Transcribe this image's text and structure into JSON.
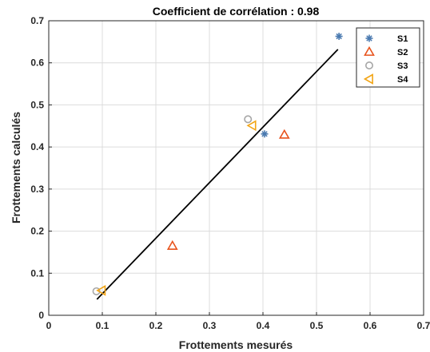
{
  "chart_data": {
    "type": "scatter",
    "title": "Coefficient de corrélation : 0.98",
    "xlabel": "Frottements mesurés",
    "ylabel": "Frottements calculés",
    "xlim": [
      0,
      0.7
    ],
    "ylim": [
      0,
      0.7
    ],
    "x_ticks": [
      0,
      0.1,
      0.2,
      0.3,
      0.4,
      0.5,
      0.6,
      0.7
    ],
    "y_ticks": [
      0,
      0.1,
      0.2,
      0.3,
      0.4,
      0.5,
      0.6,
      0.7
    ],
    "x_tick_labels": [
      "0",
      "0.1",
      "0.2",
      "0.3",
      "0.4",
      "0.5",
      "0.6",
      "0.7"
    ],
    "y_tick_labels": [
      "0",
      "0.1",
      "0.2",
      "0.3",
      "0.4",
      "0.5",
      "0.6",
      "0.7"
    ],
    "grid": true,
    "legend_position": "top-right",
    "series": [
      {
        "name": "S1",
        "marker": "asterisk",
        "color": "#4a7ab0",
        "x": [
          0.403,
          0.542
        ],
        "y": [
          0.431,
          0.663
        ]
      },
      {
        "name": "S2",
        "marker": "triangle-up",
        "color": "#e8531c",
        "x": [
          0.231,
          0.44
        ],
        "y": [
          0.165,
          0.429
        ]
      },
      {
        "name": "S3",
        "marker": "circle",
        "color": "#a6a6a6",
        "x": [
          0.089,
          0.372
        ],
        "y": [
          0.057,
          0.466
        ]
      },
      {
        "name": "S4",
        "marker": "triangle-left",
        "color": "#f2a516",
        "x": [
          0.099,
          0.38
        ],
        "y": [
          0.059,
          0.451
        ]
      }
    ],
    "fit_line": {
      "color": "#000000",
      "x": [
        0.09,
        0.54
      ],
      "y": [
        0.038,
        0.632
      ]
    }
  }
}
